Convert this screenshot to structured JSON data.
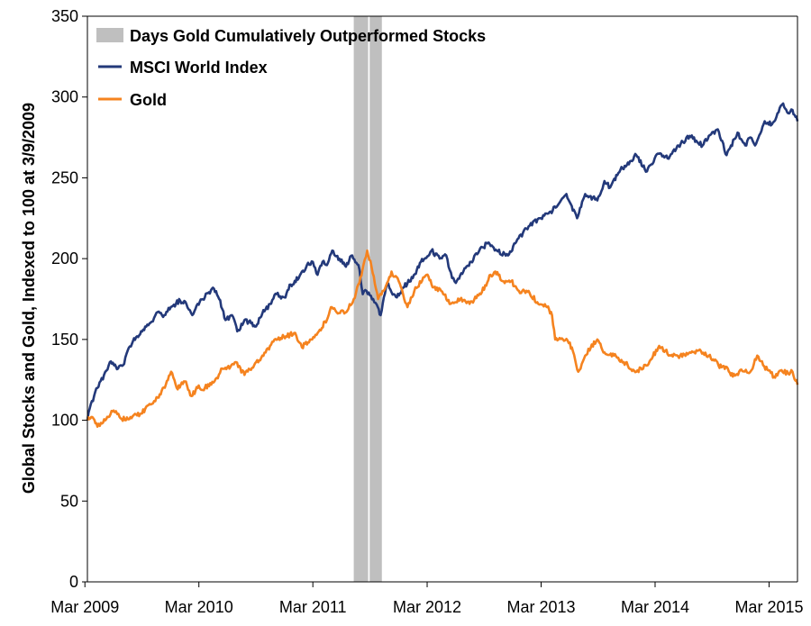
{
  "chart_data": {
    "type": "line",
    "title": "",
    "ylabel": "Global Stocks and Gold, Indexed to 100 at 3/9/2009",
    "xlabel": "",
    "ylim": [
      0,
      350
    ],
    "yticks": [
      0,
      50,
      100,
      150,
      200,
      250,
      300,
      350
    ],
    "ytick_labels": [
      "0",
      "50",
      "100",
      "150",
      "200",
      "250",
      "300",
      "350"
    ],
    "xlim": [
      "2009-03-09",
      "2015-05-31"
    ],
    "xticks": [
      "2009-03-01",
      "2010-03-01",
      "2011-03-01",
      "2012-03-01",
      "2013-03-01",
      "2014-03-01",
      "2015-03-01"
    ],
    "xtick_labels": [
      "Mar 2009",
      "Mar 2010",
      "Mar 2011",
      "Mar 2012",
      "Mar 2013",
      "Mar 2014",
      "Mar 2015"
    ],
    "grid": false,
    "legend_position": "top-left",
    "shaded_periods_label": "Days Gold Cumulatively Outperformed Stocks",
    "shaded_color": "#bfbfbf",
    "shaded_periods": [
      [
        "2011-07-10",
        "2011-08-25"
      ],
      [
        "2011-08-30",
        "2011-10-08"
      ]
    ],
    "series": [
      {
        "name": "MSCI World Index",
        "color": "#23397a",
        "points": [
          [
            "2009-03-09",
            100
          ],
          [
            "2009-03-20",
            110
          ],
          [
            "2009-04-10",
            120
          ],
          [
            "2009-05-01",
            128
          ],
          [
            "2009-05-20",
            136
          ],
          [
            "2009-06-15",
            132
          ],
          [
            "2009-07-01",
            134
          ],
          [
            "2009-07-20",
            145
          ],
          [
            "2009-08-15",
            152
          ],
          [
            "2009-09-10",
            158
          ],
          [
            "2009-10-01",
            161
          ],
          [
            "2009-10-20",
            167
          ],
          [
            "2009-11-10",
            165
          ],
          [
            "2009-12-01",
            170
          ],
          [
            "2009-12-31",
            174
          ],
          [
            "2010-01-20",
            172
          ],
          [
            "2010-02-08",
            165
          ],
          [
            "2010-02-25",
            172
          ],
          [
            "2010-03-20",
            176
          ],
          [
            "2010-04-15",
            182
          ],
          [
            "2010-05-05",
            175
          ],
          [
            "2010-05-25",
            162
          ],
          [
            "2010-06-15",
            165
          ],
          [
            "2010-07-02",
            155
          ],
          [
            "2010-07-25",
            162
          ],
          [
            "2010-08-15",
            160
          ],
          [
            "2010-08-31",
            158
          ],
          [
            "2010-09-20",
            166
          ],
          [
            "2010-10-15",
            172
          ],
          [
            "2010-11-05",
            178
          ],
          [
            "2010-11-30",
            176
          ],
          [
            "2010-12-20",
            184
          ],
          [
            "2011-01-15",
            188
          ],
          [
            "2011-02-10",
            196
          ],
          [
            "2011-03-01",
            198
          ],
          [
            "2011-03-16",
            190
          ],
          [
            "2011-04-01",
            198
          ],
          [
            "2011-04-15",
            196
          ],
          [
            "2011-05-02",
            205
          ],
          [
            "2011-05-25",
            200
          ],
          [
            "2011-06-15",
            195
          ],
          [
            "2011-07-05",
            202
          ],
          [
            "2011-07-25",
            196
          ],
          [
            "2011-08-08",
            178
          ],
          [
            "2011-08-20",
            180
          ],
          [
            "2011-09-10",
            175
          ],
          [
            "2011-09-25",
            170
          ],
          [
            "2011-10-04",
            165
          ],
          [
            "2011-10-25",
            185
          ],
          [
            "2011-11-15",
            178
          ],
          [
            "2011-11-25",
            176
          ],
          [
            "2011-12-15",
            182
          ],
          [
            "2012-01-15",
            188
          ],
          [
            "2012-02-10",
            198
          ],
          [
            "2012-03-15",
            205
          ],
          [
            "2012-04-10",
            200
          ],
          [
            "2012-05-01",
            202
          ],
          [
            "2012-05-20",
            188
          ],
          [
            "2012-06-01",
            185
          ],
          [
            "2012-06-25",
            192
          ],
          [
            "2012-07-20",
            198
          ],
          [
            "2012-08-15",
            205
          ],
          [
            "2012-09-14",
            210
          ],
          [
            "2012-10-10",
            205
          ],
          [
            "2012-11-15",
            202
          ],
          [
            "2012-12-15",
            212
          ],
          [
            "2013-01-20",
            220
          ],
          [
            "2013-02-25",
            225
          ],
          [
            "2013-03-25",
            228
          ],
          [
            "2013-04-20",
            232
          ],
          [
            "2013-05-21",
            240
          ],
          [
            "2013-06-24",
            225
          ],
          [
            "2013-07-20",
            240
          ],
          [
            "2013-08-28",
            236
          ],
          [
            "2013-09-20",
            248
          ],
          [
            "2013-10-08",
            244
          ],
          [
            "2013-11-10",
            255
          ],
          [
            "2013-12-31",
            264
          ],
          [
            "2014-02-03",
            254
          ],
          [
            "2014-03-10",
            265
          ],
          [
            "2014-04-10",
            262
          ],
          [
            "2014-05-15",
            270
          ],
          [
            "2014-06-20",
            276
          ],
          [
            "2014-07-31",
            270
          ],
          [
            "2014-08-20",
            276
          ],
          [
            "2014-09-18",
            280
          ],
          [
            "2014-10-16",
            264
          ],
          [
            "2014-11-20",
            278
          ],
          [
            "2014-12-15",
            270
          ],
          [
            "2014-12-31",
            275
          ],
          [
            "2015-01-15",
            270
          ],
          [
            "2015-02-15",
            285
          ],
          [
            "2015-03-10",
            283
          ],
          [
            "2015-04-15",
            296
          ],
          [
            "2015-05-01",
            290
          ],
          [
            "2015-05-15",
            292
          ],
          [
            "2015-05-31",
            285
          ]
        ]
      },
      {
        "name": "Gold",
        "color": "#f5831f",
        "points": [
          [
            "2009-03-09",
            100
          ],
          [
            "2009-03-25",
            102
          ],
          [
            "2009-04-10",
            96
          ],
          [
            "2009-04-25",
            98
          ],
          [
            "2009-05-15",
            102
          ],
          [
            "2009-06-01",
            106
          ],
          [
            "2009-06-20",
            102
          ],
          [
            "2009-07-10",
            100
          ],
          [
            "2009-07-25",
            102
          ],
          [
            "2009-08-15",
            103
          ],
          [
            "2009-09-10",
            107
          ],
          [
            "2009-10-01",
            110
          ],
          [
            "2009-10-20",
            114
          ],
          [
            "2009-11-15",
            122
          ],
          [
            "2009-12-02",
            130
          ],
          [
            "2009-12-20",
            120
          ],
          [
            "2010-01-15",
            124
          ],
          [
            "2010-02-05",
            115
          ],
          [
            "2010-02-25",
            120
          ],
          [
            "2010-03-20",
            120
          ],
          [
            "2010-04-20",
            124
          ],
          [
            "2010-05-15",
            132
          ],
          [
            "2010-06-10",
            133
          ],
          [
            "2010-06-28",
            136
          ],
          [
            "2010-07-25",
            128
          ],
          [
            "2010-08-25",
            134
          ],
          [
            "2010-09-20",
            140
          ],
          [
            "2010-10-15",
            146
          ],
          [
            "2010-11-08",
            150
          ],
          [
            "2010-12-05",
            152
          ],
          [
            "2010-12-31",
            154
          ],
          [
            "2011-01-25",
            145
          ],
          [
            "2011-02-20",
            150
          ],
          [
            "2011-03-20",
            155
          ],
          [
            "2011-04-15",
            162
          ],
          [
            "2011-05-01",
            170
          ],
          [
            "2011-05-20",
            166
          ],
          [
            "2011-06-20",
            168
          ],
          [
            "2011-07-10",
            175
          ],
          [
            "2011-07-28",
            185
          ],
          [
            "2011-08-10",
            196
          ],
          [
            "2011-08-22",
            205
          ],
          [
            "2011-09-05",
            195
          ],
          [
            "2011-09-26",
            175
          ],
          [
            "2011-10-10",
            180
          ],
          [
            "2011-10-25",
            185
          ],
          [
            "2011-11-08",
            192
          ],
          [
            "2011-12-01",
            186
          ],
          [
            "2011-12-15",
            178
          ],
          [
            "2011-12-29",
            170
          ],
          [
            "2012-01-20",
            180
          ],
          [
            "2012-02-28",
            190
          ],
          [
            "2012-03-15",
            184
          ],
          [
            "2012-04-15",
            180
          ],
          [
            "2012-05-15",
            172
          ],
          [
            "2012-06-15",
            175
          ],
          [
            "2012-07-15",
            172
          ],
          [
            "2012-08-20",
            178
          ],
          [
            "2012-09-20",
            190
          ],
          [
            "2012-10-05",
            192
          ],
          [
            "2012-11-01",
            186
          ],
          [
            "2012-11-25",
            186
          ],
          [
            "2012-12-20",
            180
          ],
          [
            "2013-01-20",
            180
          ],
          [
            "2013-02-20",
            172
          ],
          [
            "2013-03-20",
            170
          ],
          [
            "2013-04-05",
            165
          ],
          [
            "2013-04-15",
            150
          ],
          [
            "2013-05-10",
            150
          ],
          [
            "2013-06-01",
            148
          ],
          [
            "2013-06-28",
            130
          ],
          [
            "2013-07-20",
            140
          ],
          [
            "2013-08-28",
            150
          ],
          [
            "2013-09-20",
            142
          ],
          [
            "2013-10-20",
            140
          ],
          [
            "2013-11-20",
            136
          ],
          [
            "2013-12-31",
            130
          ],
          [
            "2014-02-05",
            134
          ],
          [
            "2014-03-14",
            146
          ],
          [
            "2014-04-20",
            140
          ],
          [
            "2014-05-20",
            140
          ],
          [
            "2014-06-20",
            142
          ],
          [
            "2014-07-15",
            143
          ],
          [
            "2014-08-20",
            140
          ],
          [
            "2014-09-20",
            134
          ],
          [
            "2014-10-20",
            132
          ],
          [
            "2014-11-05",
            127
          ],
          [
            "2014-11-25",
            130
          ],
          [
            "2014-12-31",
            130
          ],
          [
            "2015-01-22",
            140
          ],
          [
            "2015-02-10",
            134
          ],
          [
            "2015-03-17",
            127
          ],
          [
            "2015-04-10",
            131
          ],
          [
            "2015-05-01",
            129
          ],
          [
            "2015-05-15",
            130
          ],
          [
            "2015-05-31",
            122
          ]
        ]
      }
    ]
  }
}
